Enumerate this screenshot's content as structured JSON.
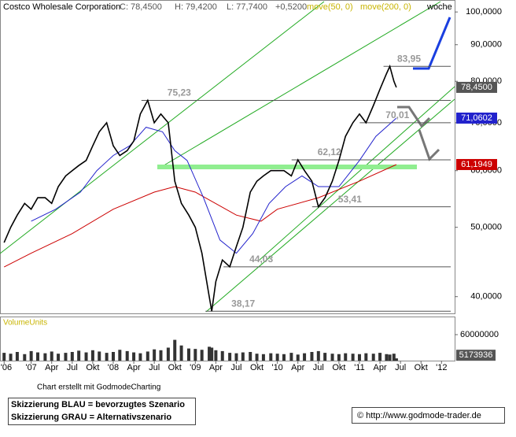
{
  "header": {
    "close": "C: 78,4500",
    "high": "H: 79,4200",
    "low": "L: 77,7400",
    "change": "+0,5200",
    "period": "woche"
  },
  "chart_data": [
    {
      "type": "line",
      "title": "Costco Wholesale Corporation",
      "log_scale": true,
      "xlim": [
        2006.62,
        2012.16
      ],
      "ylim": [
        37.9,
        103.4
      ],
      "yticks": [
        {
          "value": 40,
          "label": "40,0000"
        },
        {
          "value": 50,
          "label": "50,0000"
        },
        {
          "value": 60,
          "label": "60,0000"
        },
        {
          "value": 70,
          "label": "70,0000"
        },
        {
          "value": 80,
          "label": "80,0000"
        },
        {
          "value": 90,
          "label": "90,0000"
        },
        {
          "value": 100,
          "label": "100,0000"
        }
      ],
      "series": [
        {
          "color": "#000000",
          "tag": "78,4500",
          "x": [
            2006.67,
            2006.75,
            2006.83,
            2006.92,
            2007.0,
            2007.08,
            2007.17,
            2007.25,
            2007.33,
            2007.42,
            2007.5,
            2007.58,
            2007.67,
            2007.75,
            2007.83,
            2007.92,
            2008.0,
            2008.08,
            2008.17,
            2008.25,
            2008.33,
            2008.42,
            2008.5,
            2008.58,
            2008.67,
            2008.75,
            2008.83,
            2008.92,
            2009.0,
            2009.08,
            2009.17,
            2009.2,
            2009.25,
            2009.33,
            2009.42,
            2009.5,
            2009.58,
            2009.67,
            2009.75,
            2009.83,
            2009.92,
            2010.0,
            2010.08,
            2010.17,
            2010.25,
            2010.33,
            2010.42,
            2010.5,
            2010.58,
            2010.67,
            2010.75,
            2010.83,
            2010.92,
            2011.0,
            2011.08,
            2011.17,
            2011.25,
            2011.33,
            2011.37,
            2011.42,
            2011.45
          ],
          "values": [
            47.6,
            50,
            52,
            54,
            53,
            55,
            55,
            54,
            57,
            59,
            60,
            61,
            62,
            65,
            68,
            70,
            65,
            63,
            64,
            66,
            72,
            75.23,
            70,
            72,
            70,
            58,
            54,
            52,
            50,
            46,
            40,
            38.17,
            42,
            45,
            44.03,
            47,
            50,
            56,
            58,
            59,
            60,
            60,
            60,
            59,
            62.12,
            60,
            58,
            53.41,
            55,
            58,
            62,
            67,
            70,
            72,
            70.01,
            74,
            78,
            82,
            83.95,
            80,
            78.45
          ]
        },
        {
          "name": "move(50, 0)",
          "color": "#2222cc",
          "tag": "71,0602",
          "x": [
            2007.0,
            2007.3,
            2007.6,
            2007.8,
            2008.0,
            2008.2,
            2008.4,
            2008.6,
            2008.75,
            2008.9,
            2009.1,
            2009.3,
            2009.5,
            2009.7,
            2009.9,
            2010.1,
            2010.3,
            2010.5,
            2010.75,
            2011.0,
            2011.2,
            2011.45
          ],
          "values": [
            51,
            53,
            56,
            60,
            63,
            65,
            69,
            68,
            64,
            62,
            55,
            48,
            46,
            49,
            54,
            57,
            59,
            57,
            57,
            62,
            67,
            71.0602
          ]
        },
        {
          "name": "move(200, 0)",
          "color": "#cc0000",
          "tag": "61,1949",
          "x": [
            2006.67,
            2007.0,
            2007.5,
            2008.0,
            2008.5,
            2008.75,
            2009.0,
            2009.5,
            2009.8,
            2010.0,
            2010.5,
            2011.0,
            2011.45
          ],
          "values": [
            44,
            46,
            49,
            53,
            56,
            57,
            56,
            52,
            51,
            53,
            55,
            58,
            61.1949
          ]
        }
      ],
      "levels": [
        {
          "value": 83.95,
          "label": "83,95"
        },
        {
          "value": 75.23,
          "label": "75,23"
        },
        {
          "value": 70.01,
          "label": "70,01"
        },
        {
          "value": 62.12,
          "label": "62,12"
        },
        {
          "value": 53.41,
          "label": "53,41"
        },
        {
          "value": 44.03,
          "label": "44,03"
        },
        {
          "value": 38.17,
          "label": "38,17"
        }
      ]
    },
    {
      "type": "bar",
      "title": "VolumeUnits",
      "color": "#333333",
      "xlim": [
        2006.62,
        2012.16
      ],
      "ylim": [
        0,
        100000000
      ],
      "yticks": [
        60000000
      ],
      "x": [
        2006.67,
        2006.75,
        2006.83,
        2006.92,
        2007.0,
        2007.08,
        2007.17,
        2007.25,
        2007.33,
        2007.42,
        2007.5,
        2007.58,
        2007.67,
        2007.75,
        2007.83,
        2007.92,
        2008.0,
        2008.08,
        2008.17,
        2008.25,
        2008.33,
        2008.42,
        2008.5,
        2008.58,
        2008.67,
        2008.75,
        2008.83,
        2008.92,
        2009.0,
        2009.08,
        2009.17,
        2009.2,
        2009.25,
        2009.33,
        2009.42,
        2009.5,
        2009.58,
        2009.67,
        2009.75,
        2009.83,
        2009.92,
        2010.0,
        2010.08,
        2010.17,
        2010.25,
        2010.33,
        2010.42,
        2010.5,
        2010.58,
        2010.67,
        2010.75,
        2010.83,
        2010.92,
        2011.0,
        2011.08,
        2011.17,
        2011.25,
        2011.33,
        2011.37,
        2011.42,
        2011.45
      ],
      "values": [
        18000000,
        16000000,
        20000000,
        15000000,
        22000000,
        19000000,
        17000000,
        21000000,
        16000000,
        18000000,
        20000000,
        23000000,
        19000000,
        24000000,
        21000000,
        18000000,
        20000000,
        25000000,
        22000000,
        19000000,
        17000000,
        21000000,
        26000000,
        24000000,
        30000000,
        48000000,
        35000000,
        28000000,
        27000000,
        25000000,
        32000000,
        30000000,
        24000000,
        22000000,
        18000000,
        17000000,
        19000000,
        20000000,
        16000000,
        15000000,
        17000000,
        16000000,
        15000000,
        18000000,
        14000000,
        17000000,
        20000000,
        22000000,
        18000000,
        16000000,
        15000000,
        17000000,
        16000000,
        15000000,
        17000000,
        16000000,
        18000000,
        15000000,
        14000000,
        16000000,
        5173936
      ],
      "xticks": [
        {
          "value": 2006.67,
          "label": "'06"
        },
        {
          "value": 2007.0,
          "label": "'07"
        },
        {
          "value": 2007.25,
          "label": "Apr"
        },
        {
          "value": 2007.5,
          "label": "Jul"
        },
        {
          "value": 2007.75,
          "label": "Okt"
        },
        {
          "value": 2008.0,
          "label": "'08"
        },
        {
          "value": 2008.25,
          "label": "Apr"
        },
        {
          "value": 2008.5,
          "label": "Jul"
        },
        {
          "value": 2008.75,
          "label": "Okt"
        },
        {
          "value": 2009.0,
          "label": "'09"
        },
        {
          "value": 2009.25,
          "label": "Apr"
        },
        {
          "value": 2009.5,
          "label": "Jul"
        },
        {
          "value": 2009.75,
          "label": "Okt"
        },
        {
          "value": 2010.0,
          "label": "'10"
        },
        {
          "value": 2010.25,
          "label": "Apr"
        },
        {
          "value": 2010.5,
          "label": "Jul"
        },
        {
          "value": 2010.75,
          "label": "Okt"
        },
        {
          "value": 2011.0,
          "label": "'11"
        },
        {
          "value": 2011.25,
          "label": "Apr"
        },
        {
          "value": 2011.5,
          "label": "Jul"
        },
        {
          "value": 2011.75,
          "label": "Okt"
        },
        {
          "value": 2012.0,
          "label": "'12"
        }
      ]
    }
  ],
  "footer": {
    "credit": "Chart erstellt mit GodmodeCharting",
    "note_blue": "Skizzierung BLAU = bevorzugtes Szenario",
    "note_grey": "Skizzierung GRAU = Alternativszenario",
    "source": "© http://www.godmode-trader.de"
  }
}
